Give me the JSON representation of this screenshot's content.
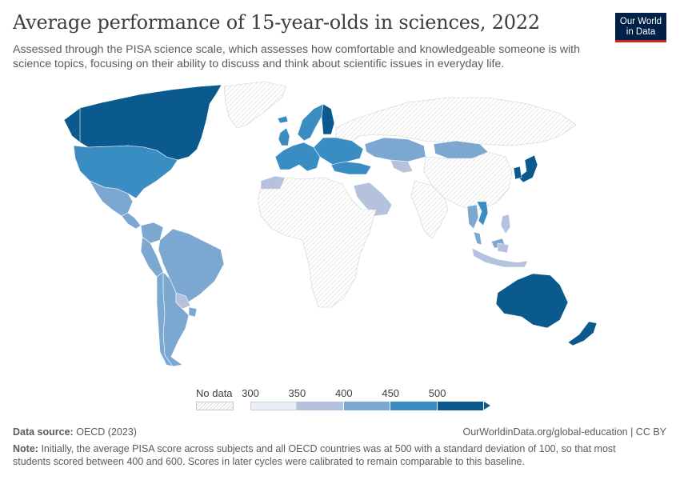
{
  "header": {
    "title": "Average performance of 15-year-olds in sciences, 2022",
    "subtitle": "Assessed through the PISA science scale, which assesses how comfortable and knowledgeable someone is with science topics, focusing on their ability to discuss and think about scientific issues in everyday life."
  },
  "logo": {
    "line1": "Our World",
    "line2": "in Data"
  },
  "legend": {
    "no_data_label": "No data",
    "ticks": [
      "300",
      "350",
      "400",
      "450",
      "500"
    ],
    "colors": [
      "#eceef6",
      "#b5c2de",
      "#7ba7d1",
      "#3a8dc3",
      "#0a5a8e"
    ],
    "no_data_color": "#dcdcdc"
  },
  "footer": {
    "source_label": "Data source:",
    "source_value": "OECD (2023)",
    "url": "OurWorldinData.org/global-education | CC BY",
    "note_label": "Note:",
    "note_text": "Initially, the average PISA score across subjects and all OECD countries was at 500 with a standard deviation of 100, so that most students scored between 400 and 600. Scores in later cycles were calibrated to remain comparable to this baseline."
  },
  "map_regions": [
    {
      "name": "canada",
      "bin": 4
    },
    {
      "name": "usa",
      "bin": 3
    },
    {
      "name": "mexico",
      "bin": 2
    },
    {
      "name": "central-america",
      "bin": 2
    },
    {
      "name": "brazil",
      "bin": 2
    },
    {
      "name": "peru",
      "bin": 2
    },
    {
      "name": "colombia",
      "bin": 2
    },
    {
      "name": "argentina",
      "bin": 2
    },
    {
      "name": "chile",
      "bin": 2
    },
    {
      "name": "paraguay",
      "bin": 1
    },
    {
      "name": "uruguay",
      "bin": 2
    },
    {
      "name": "greenland",
      "bin": null
    },
    {
      "name": "iceland",
      "bin": 3
    },
    {
      "name": "uk-ireland",
      "bin": 3
    },
    {
      "name": "scandinavia",
      "bin": 3
    },
    {
      "name": "finland",
      "bin": 4
    },
    {
      "name": "western-europe",
      "bin": 3
    },
    {
      "name": "eastern-europe",
      "bin": 3
    },
    {
      "name": "turkey",
      "bin": 3
    },
    {
      "name": "russia",
      "bin": null
    },
    {
      "name": "kazakhstan",
      "bin": 2
    },
    {
      "name": "mongolia",
      "bin": 2
    },
    {
      "name": "uzbekistan",
      "bin": 1
    },
    {
      "name": "saudi-arabia",
      "bin": 1
    },
    {
      "name": "morocco",
      "bin": 1
    },
    {
      "name": "africa",
      "bin": null
    },
    {
      "name": "china",
      "bin": null
    },
    {
      "name": "india",
      "bin": null
    },
    {
      "name": "japan",
      "bin": 4
    },
    {
      "name": "korea",
      "bin": 4
    },
    {
      "name": "vietnam",
      "bin": 3
    },
    {
      "name": "thailand",
      "bin": 2
    },
    {
      "name": "malaysia",
      "bin": 2
    },
    {
      "name": "philippines",
      "bin": 1
    },
    {
      "name": "indonesia",
      "bin": 1
    },
    {
      "name": "australia",
      "bin": 4
    },
    {
      "name": "new-zealand",
      "bin": 4
    }
  ]
}
